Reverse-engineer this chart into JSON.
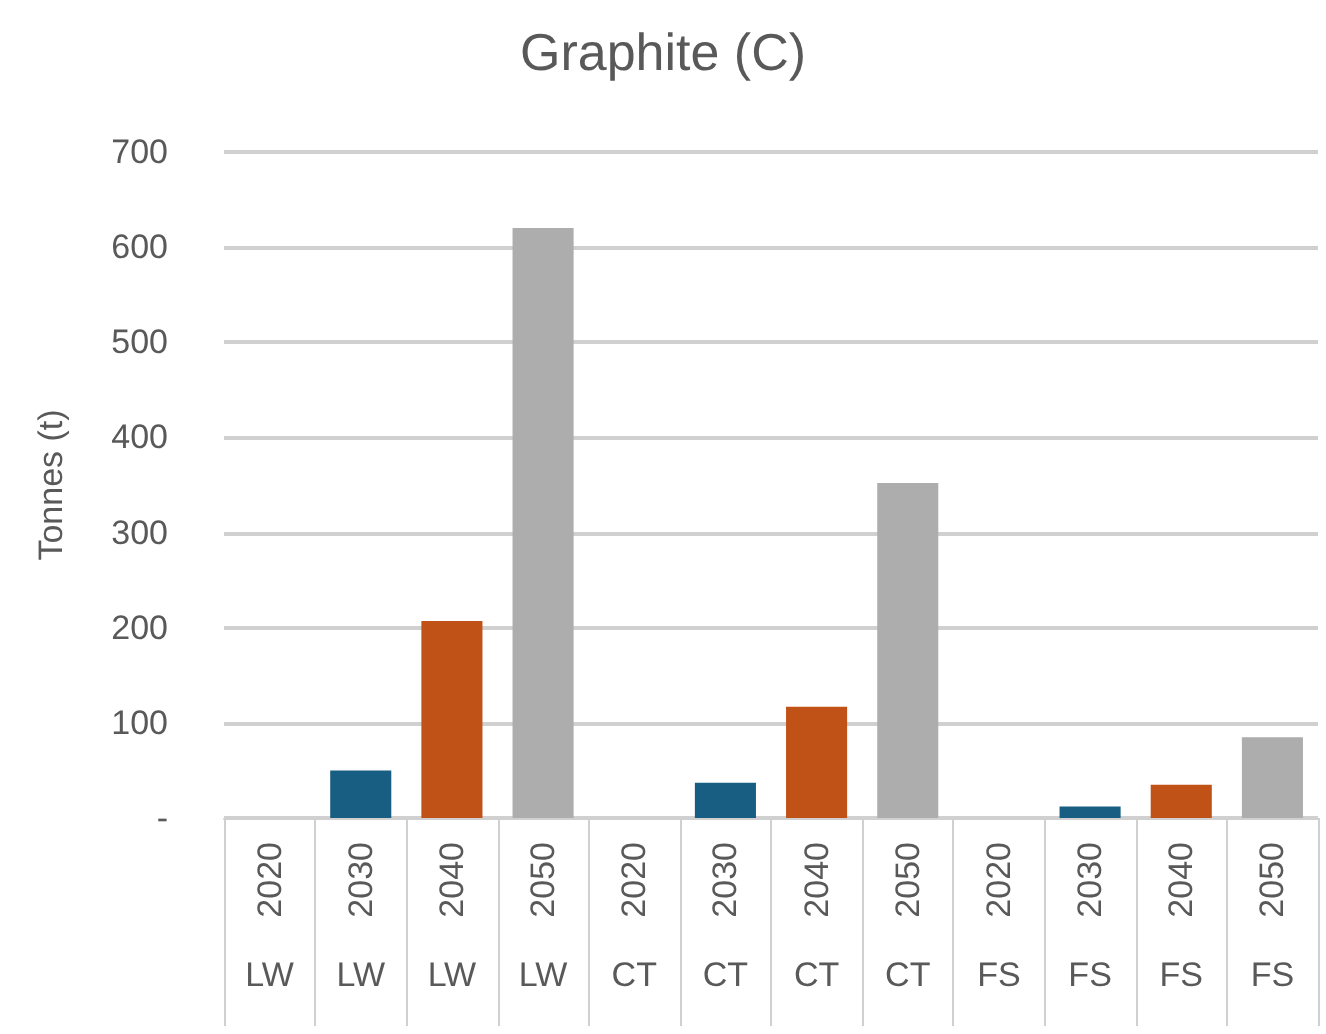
{
  "chart_data": {
    "type": "bar",
    "title": "Graphite (C)",
    "ylabel": "Tonnes (t)",
    "categories": [
      "2020\nLW",
      "2030\nLW",
      "2040\nLW",
      "2050\nLW",
      "2020\nCT",
      "2030\nCT",
      "2040\nCT",
      "2050\nCT",
      "2020\nFS",
      "2030\nFS",
      "2040\nFS",
      "2050\nFS"
    ],
    "values": [
      0,
      50,
      207,
      620,
      0,
      37,
      117,
      352,
      0,
      12,
      35,
      85
    ],
    "colors": [
      "#175e82",
      "#175e82",
      "#c05117",
      "#adadad",
      "#175e82",
      "#175e82",
      "#c05117",
      "#adadad",
      "#175e82",
      "#175e82",
      "#c05117",
      "#adadad"
    ],
    "ylim": [
      0,
      700
    ],
    "yticks": [
      {
        "value": 0,
        "label": "-"
      },
      100,
      200,
      300,
      400,
      500,
      600,
      700
    ],
    "grid": "y"
  }
}
